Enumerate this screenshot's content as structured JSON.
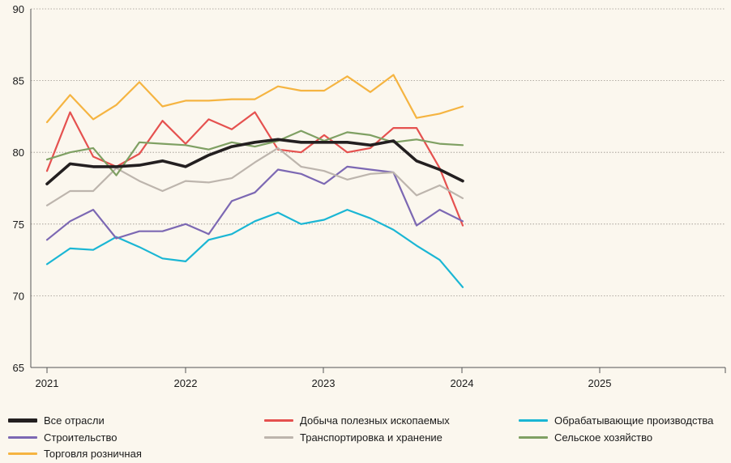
{
  "chart_data": {
    "type": "line",
    "title": "",
    "xlabel": "",
    "ylabel": "",
    "ylim": [
      65,
      90
    ],
    "yticks": [
      "65",
      "70",
      "75",
      "80",
      "85",
      "90"
    ],
    "xticks": [
      "2021",
      "2022",
      "2023",
      "2024",
      "2025"
    ],
    "grid": true,
    "legend_position": "bottom",
    "series": [
      {
        "name": "Все отрасли",
        "color": "#231f20",
        "bold": true,
        "values": [
          77.8,
          79.2,
          79.0,
          79.0,
          79.1,
          79.4,
          79.0,
          79.8,
          80.4,
          80.7,
          80.9,
          80.7,
          80.7,
          80.7,
          80.5,
          80.8,
          79.4,
          78.8,
          78.0
        ]
      },
      {
        "name": "Добыча полезных ископаемых",
        "color": "#e5514f",
        "bold": false,
        "values": [
          78.7,
          82.8,
          79.7,
          79.0,
          79.9,
          82.2,
          80.6,
          82.3,
          81.6,
          82.8,
          80.2,
          80.0,
          81.2,
          80.0,
          80.3,
          81.7,
          81.7,
          78.9,
          74.9
        ]
      },
      {
        "name": "Обрабатывающие производства",
        "color": "#1ab6d4",
        "bold": false,
        "values": [
          72.2,
          73.3,
          73.2,
          74.1,
          73.4,
          72.6,
          72.4,
          73.9,
          74.3,
          75.2,
          75.8,
          75.0,
          75.3,
          76.0,
          75.4,
          74.6,
          73.5,
          72.5,
          70.6
        ]
      },
      {
        "name": "Строительство",
        "color": "#7c68b3",
        "bold": false,
        "values": [
          73.9,
          75.2,
          76.0,
          74.0,
          74.5,
          74.5,
          75.0,
          74.3,
          76.6,
          77.2,
          78.8,
          78.5,
          77.8,
          79.0,
          78.8,
          78.6,
          74.9,
          76.0,
          75.2
        ]
      },
      {
        "name": "Транспортировка и хранение",
        "color": "#bdb5ad",
        "bold": false,
        "values": [
          76.3,
          77.3,
          77.3,
          78.9,
          78.0,
          77.3,
          78.0,
          77.9,
          78.2,
          79.3,
          80.3,
          79.0,
          78.7,
          78.1,
          78.5,
          78.6,
          77.0,
          77.7,
          76.8
        ]
      },
      {
        "name": "Сельское хозяйство",
        "color": "#7fa063",
        "bold": false,
        "values": [
          79.5,
          80.0,
          80.3,
          78.4,
          80.7,
          80.6,
          80.5,
          80.2,
          80.7,
          80.4,
          80.8,
          81.5,
          80.8,
          81.4,
          81.2,
          80.7,
          80.9,
          80.6,
          80.5
        ]
      },
      {
        "name": "Торговля розничная",
        "color": "#f5b441",
        "bold": false,
        "values": [
          82.1,
          84.0,
          82.3,
          83.3,
          84.9,
          83.2,
          83.6,
          83.6,
          83.7,
          83.7,
          84.6,
          84.3,
          84.3,
          85.3,
          84.2,
          85.4,
          82.4,
          82.7,
          83.2
        ]
      }
    ]
  }
}
